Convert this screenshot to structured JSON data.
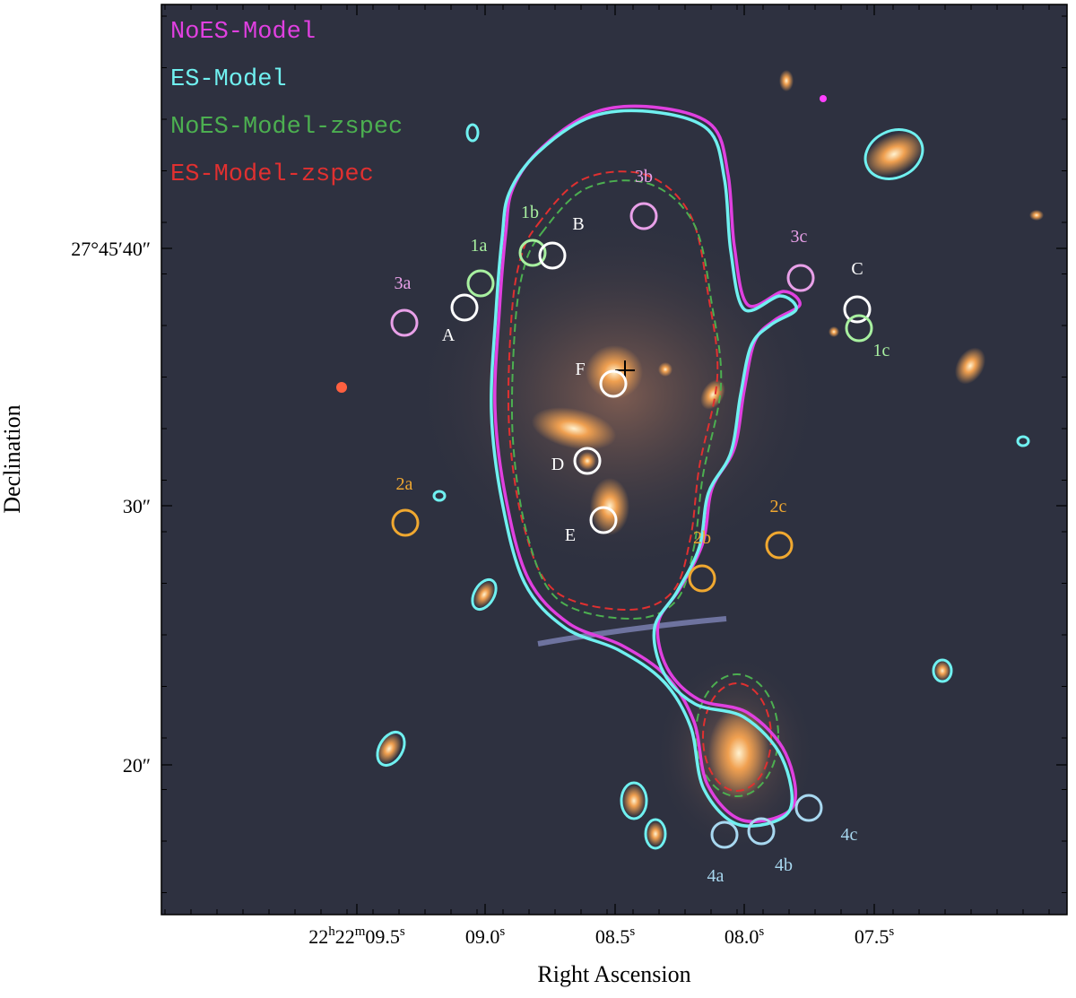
{
  "legend": [
    {
      "label": "NoES-Model",
      "color": "#e040e0"
    },
    {
      "label": "ES-Model",
      "color": "#70f0f0"
    },
    {
      "label": "NoES-Model-zspec",
      "color": "#4caf50"
    },
    {
      "label": "ES-Model-zspec",
      "color": "#e03030"
    }
  ],
  "axes": {
    "x_label": "Right Ascension",
    "y_label": "Declination",
    "x_ticks": [
      [
        [
          "22",
          "h"
        ],
        [
          "22",
          "m"
        ],
        [
          "09.5",
          "s"
        ]
      ],
      [
        [
          "09.0",
          "s"
        ]
      ],
      [
        [
          "08.5",
          "s"
        ]
      ],
      [
        [
          "08.0",
          "s"
        ]
      ],
      [
        [
          "07.5",
          "s"
        ]
      ]
    ],
    "y_ticks": [
      "27°45′40″",
      "30″",
      "20″"
    ]
  },
  "image_labels": [
    {
      "text": "3a",
      "color": "#e8a0e8"
    },
    {
      "text": "A",
      "color": "#ffffff"
    },
    {
      "text": "1a",
      "color": "#a8f0a0"
    },
    {
      "text": "1b",
      "color": "#a8f0a0"
    },
    {
      "text": "B",
      "color": "#ffffff"
    },
    {
      "text": "3b",
      "color": "#e8a0e8"
    },
    {
      "text": "3c",
      "color": "#e8a0e8"
    },
    {
      "text": "C",
      "color": "#ffffff"
    },
    {
      "text": "1c",
      "color": "#a8f0a0"
    },
    {
      "text": "F",
      "color": "#ffffff"
    },
    {
      "text": "D",
      "color": "#ffffff"
    },
    {
      "text": "E",
      "color": "#ffffff"
    },
    {
      "text": "2a",
      "color": "#f0a830"
    },
    {
      "text": "2b",
      "color": "#f0a830"
    },
    {
      "text": "2c",
      "color": "#f0a830"
    },
    {
      "text": "4a",
      "color": "#a8d8f0"
    },
    {
      "text": "4b",
      "color": "#a8d8f0"
    },
    {
      "text": "4c",
      "color": "#a8d8f0"
    }
  ]
}
